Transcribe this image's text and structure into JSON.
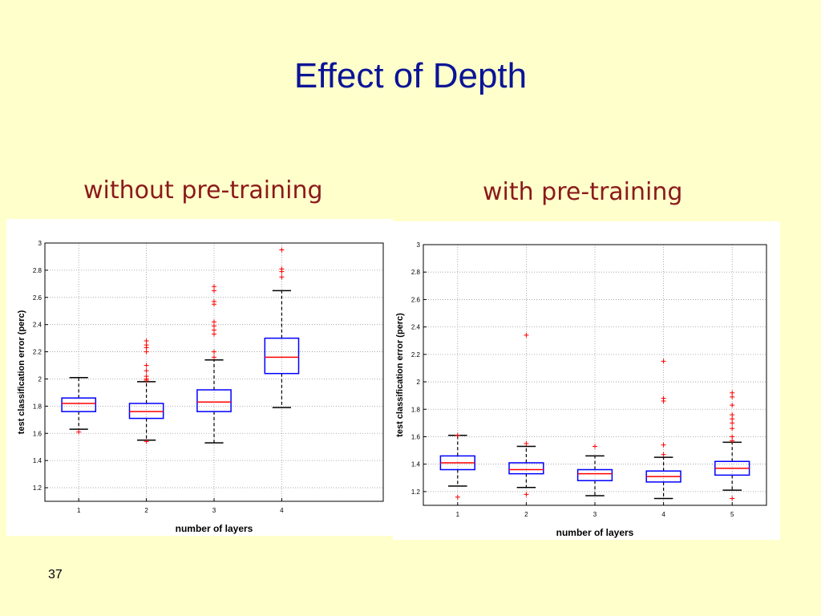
{
  "slide": {
    "title": "Effect of Depth",
    "left_subtitle": "without pre-training",
    "right_subtitle": "with pre-training",
    "page_number": "37"
  },
  "colors": {
    "background": "#ffffcc",
    "title": "#0a1496",
    "subtitle": "#8b1a1a",
    "box": "#0000ff",
    "median": "#ff0000",
    "outlier": "#ff0000",
    "whisker": "#000000"
  },
  "chart_data": [
    {
      "type": "box",
      "xlabel": "number of layers",
      "ylabel": "test classification error (perc)",
      "ylim": [
        1.1,
        3.0
      ],
      "yticks": [
        1.2,
        1.4,
        1.6,
        1.8,
        2,
        2.2,
        2.4,
        2.6,
        2.8,
        3
      ],
      "ytick_labels": [
        "1.2",
        "1.4",
        "1.6",
        "1.8",
        "2",
        "2.2",
        "2.4",
        "2.6",
        "2.8",
        "3"
      ],
      "xlim": [
        0.5,
        5.5
      ],
      "categories": [
        "1",
        "2",
        "3",
        "4"
      ],
      "grid": true,
      "boxes": [
        {
          "category": "1",
          "whisker_low": 1.63,
          "q1": 1.76,
          "median": 1.82,
          "q3": 1.86,
          "whisker_high": 2.01,
          "outliers": [
            1.61
          ]
        },
        {
          "category": "2",
          "whisker_low": 1.55,
          "q1": 1.71,
          "median": 1.76,
          "q3": 1.82,
          "whisker_high": 1.98,
          "outliers": [
            1.54,
            1.99,
            2.0,
            2.02,
            2.06,
            2.1,
            2.2,
            2.23,
            2.25,
            2.28
          ]
        },
        {
          "category": "3",
          "whisker_low": 1.53,
          "q1": 1.76,
          "median": 1.83,
          "q3": 1.92,
          "whisker_high": 2.14,
          "outliers": [
            2.16,
            2.2,
            2.33,
            2.36,
            2.39,
            2.42,
            2.55,
            2.57,
            2.65,
            2.68
          ]
        },
        {
          "category": "4",
          "whisker_low": 1.79,
          "q1": 2.04,
          "median": 2.16,
          "q3": 2.3,
          "whisker_high": 2.65,
          "outliers": [
            2.75,
            2.79,
            2.81,
            2.95
          ]
        }
      ]
    },
    {
      "type": "box",
      "xlabel": "number of layers",
      "ylabel": "test classification error (perc)",
      "ylim": [
        1.1,
        3.0
      ],
      "yticks": [
        1.2,
        1.4,
        1.6,
        1.8,
        2,
        2.2,
        2.4,
        2.6,
        2.8,
        3
      ],
      "ytick_labels": [
        "1.2",
        "1.4",
        "1.6",
        "1.8",
        "2",
        "2.2",
        "2.4",
        "2.6",
        "2.8",
        "3"
      ],
      "xlim": [
        0.5,
        5.5
      ],
      "categories": [
        "1",
        "2",
        "3",
        "4",
        "5"
      ],
      "grid": true,
      "boxes": [
        {
          "category": "1",
          "whisker_low": 1.24,
          "q1": 1.36,
          "median": 1.41,
          "q3": 1.46,
          "whisker_high": 1.61,
          "outliers": [
            1.16,
            1.61
          ]
        },
        {
          "category": "2",
          "whisker_low": 1.23,
          "q1": 1.33,
          "median": 1.36,
          "q3": 1.41,
          "whisker_high": 1.53,
          "outliers": [
            1.18,
            1.55,
            2.34
          ]
        },
        {
          "category": "3",
          "whisker_low": 1.17,
          "q1": 1.28,
          "median": 1.33,
          "q3": 1.36,
          "whisker_high": 1.46,
          "outliers": [
            1.53
          ]
        },
        {
          "category": "4",
          "whisker_low": 1.15,
          "q1": 1.27,
          "median": 1.31,
          "q3": 1.35,
          "whisker_high": 1.45,
          "outliers": [
            1.47,
            1.54,
            1.86,
            1.88,
            2.15
          ]
        },
        {
          "category": "5",
          "whisker_low": 1.21,
          "q1": 1.32,
          "median": 1.37,
          "q3": 1.42,
          "whisker_high": 1.56,
          "outliers": [
            1.15,
            1.57,
            1.6,
            1.66,
            1.7,
            1.73,
            1.76,
            1.83,
            1.89,
            1.92
          ]
        }
      ]
    }
  ]
}
